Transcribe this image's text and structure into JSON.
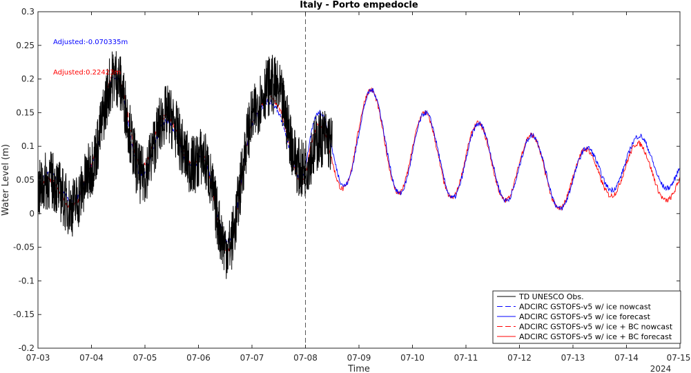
{
  "chart_data": {
    "type": "line",
    "title": "Italy - Porto empedocle",
    "xlabel": "Time",
    "ylabel": "Water Level (m)",
    "year_label": "2024",
    "xlim": [
      "07-03",
      "07-15"
    ],
    "ylim": [
      -0.2,
      0.3
    ],
    "x_ticks": [
      "07-03",
      "07-04",
      "07-05",
      "07-06",
      "07-07",
      "07-08",
      "07-09",
      "07-10",
      "07-11",
      "07-12",
      "07-13",
      "07-14",
      "07-15"
    ],
    "y_ticks": [
      -0.2,
      -0.15,
      -0.1,
      -0.05,
      0,
      0.05,
      0.1,
      0.15,
      0.2,
      0.25,
      0.3
    ],
    "y_tick_labels": [
      "-0.2",
      "-0.15",
      "-0.1",
      "-0.05",
      "0",
      "0.05",
      "0.1",
      "0.15",
      "0.2",
      "0.25",
      "0.3"
    ],
    "nowcast_forecast_split": "07-08",
    "annotations": [
      {
        "text": "Adjusted:-0.070335m",
        "color": "#0000ff"
      },
      {
        "text": "Adjusted:0.22423m",
        "color": "#ff0000"
      }
    ],
    "legend_position": "bottom-right",
    "series": [
      {
        "name": "TD UNESCO Obs.",
        "color": "#000000",
        "style": "solid",
        "x": [
          "07-03",
          "07-03 12:00",
          "07-04",
          "07-04 12:00",
          "07-05",
          "07-05 12:00",
          "07-06",
          "07-06 12:00",
          "07-07",
          "07-07 12:00",
          "07-08",
          "07-08 12:00"
        ],
        "values": [
          0.03,
          0.02,
          0.07,
          0.2,
          0.06,
          0.14,
          0.08,
          -0.05,
          0.14,
          0.18,
          0.07,
          0.1
        ]
      },
      {
        "name": "ADCIRC GSTOFS-v5 w/ ice nowcast",
        "color": "#0000ff",
        "style": "dashed",
        "x": [
          "07-03",
          "07-03 12:00",
          "07-04",
          "07-04 12:00",
          "07-05",
          "07-05 12:00",
          "07-06",
          "07-06 12:00",
          "07-07",
          "07-07 12:00",
          "07-08"
        ],
        "values": [
          0.04,
          0.03,
          0.07,
          0.2,
          0.06,
          0.13,
          0.08,
          -0.04,
          0.13,
          0.15,
          0.06
        ]
      },
      {
        "name": "ADCIRC GSTOFS-v5 w/ ice forecast",
        "color": "#0000ff",
        "style": "solid",
        "x": [
          "07-08",
          "07-09",
          "07-10",
          "07-11",
          "07-12",
          "07-13",
          "07-14",
          "07-15"
        ],
        "values": [
          0.07,
          0.12,
          0.09,
          0.08,
          0.07,
          0.05,
          0.08,
          0.07
        ]
      },
      {
        "name": "ADCIRC GSTOFS-v5 w/ ice + BC nowcast",
        "color": "#ff0000",
        "style": "dashed",
        "x": [
          "07-03",
          "07-03 12:00",
          "07-04",
          "07-04 12:00",
          "07-05",
          "07-05 12:00",
          "07-06",
          "07-06 12:00",
          "07-07",
          "07-07 12:00",
          "07-08"
        ],
        "values": [
          0.03,
          0.02,
          0.07,
          0.21,
          0.07,
          0.14,
          0.08,
          -0.05,
          0.13,
          0.16,
          0.05
        ]
      },
      {
        "name": "ADCIRC GSTOFS-v5 w/ ice + BC forecast",
        "color": "#ff0000",
        "style": "solid",
        "x": [
          "07-08",
          "07-09",
          "07-10",
          "07-11",
          "07-12",
          "07-13",
          "07-14",
          "07-15"
        ],
        "values": [
          0.05,
          0.12,
          0.09,
          0.08,
          0.07,
          0.05,
          0.07,
          0.05
        ]
      }
    ]
  }
}
